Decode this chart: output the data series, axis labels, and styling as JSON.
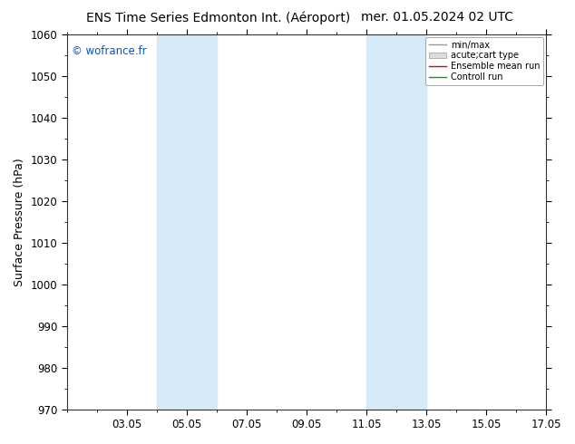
{
  "title_left": "ENS Time Series Edmonton Int. (Aéroport)",
  "title_right": "mer. 01.05.2024 02 UTC",
  "ylabel": "Surface Pressure (hPa)",
  "ylim": [
    970,
    1060
  ],
  "yticks": [
    970,
    980,
    990,
    1000,
    1010,
    1020,
    1030,
    1040,
    1050,
    1060
  ],
  "xlim": [
    1,
    17
  ],
  "xtick_labels": [
    "03.05",
    "05.05",
    "07.05",
    "09.05",
    "11.05",
    "13.05",
    "15.05",
    "17.05"
  ],
  "xtick_positions": [
    3,
    5,
    7,
    9,
    11,
    13,
    15,
    17
  ],
  "xminor_positions": [
    1,
    2,
    3,
    4,
    5,
    6,
    7,
    8,
    9,
    10,
    11,
    12,
    13,
    14,
    15,
    16,
    17
  ],
  "shade_bands": [
    {
      "xmin": 4.0,
      "xmax": 5.0
    },
    {
      "xmin": 5.0,
      "xmax": 6.0
    },
    {
      "xmin": 11.0,
      "xmax": 12.0
    },
    {
      "xmin": 12.0,
      "xmax": 13.0
    }
  ],
  "shade_colors": [
    "#ddeef8",
    "#c8e4f4",
    "#ddeef8",
    "#c8e4f4"
  ],
  "shade_color": "#d6eaf8",
  "bg_color": "#ffffff",
  "plot_bg_color": "#ffffff",
  "watermark": "© wofrance.fr",
  "watermark_color": "#0055cc",
  "legend_labels": [
    "min/max",
    "acute;cart type",
    "Ensemble mean run",
    "Controll run"
  ],
  "title_fontsize": 10,
  "axis_label_fontsize": 9,
  "tick_fontsize": 8.5
}
